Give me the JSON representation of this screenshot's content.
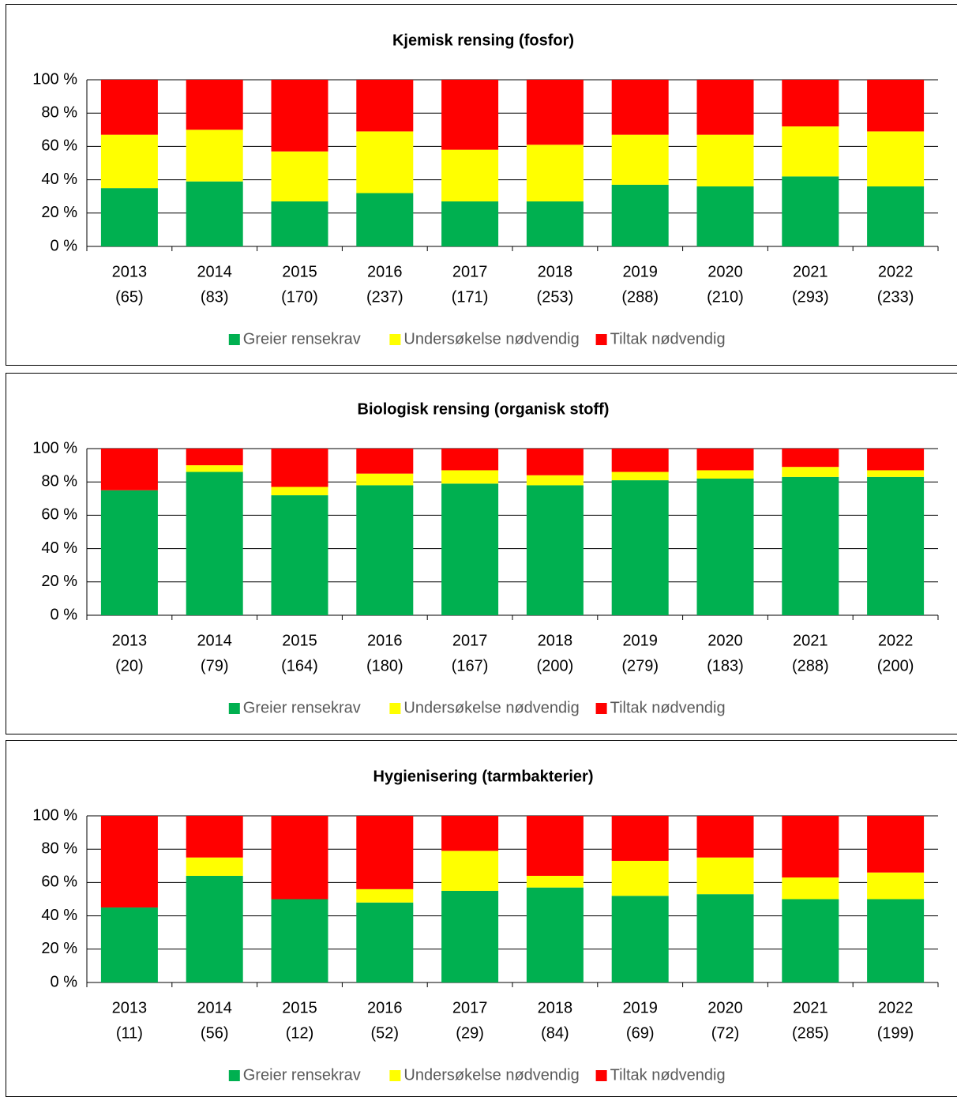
{
  "chart_data": [
    {
      "type": "bar",
      "stacked": true,
      "title": "Kjemisk rensing (fosfor)",
      "categories": [
        [
          "2013",
          "(65)"
        ],
        [
          "2014",
          "(83)"
        ],
        [
          "2015",
          "(170)"
        ],
        [
          "2016",
          "(237)"
        ],
        [
          "2017",
          "(171)"
        ],
        [
          "2018",
          "(253)"
        ],
        [
          "2019",
          "(288)"
        ],
        [
          "2020",
          "(210)"
        ],
        [
          "2021",
          "(293)"
        ],
        [
          "2022",
          "(233)"
        ]
      ],
      "series": [
        {
          "name": "Greier rensekrav",
          "color": "#00b050",
          "values": [
            35,
            39,
            27,
            32,
            27,
            27,
            37,
            36,
            42,
            36
          ]
        },
        {
          "name": "Undersøkelse nødvendig",
          "color": "#ffff00",
          "values": [
            32,
            31,
            30,
            37,
            31,
            34,
            30,
            31,
            30,
            33
          ]
        },
        {
          "name": "Tiltak nødvendig",
          "color": "#ff0000",
          "values": [
            33,
            30,
            43,
            31,
            42,
            39,
            33,
            33,
            28,
            31
          ]
        }
      ],
      "ylim": [
        0,
        100
      ],
      "yticks": [
        {
          "value": 0,
          "label": "0 %"
        },
        {
          "value": 20,
          "label": "20 %"
        },
        {
          "value": 40,
          "label": "40 %"
        },
        {
          "value": 60,
          "label": "60 %"
        },
        {
          "value": 80,
          "label": "80 %"
        },
        {
          "value": 100,
          "label": "100 %"
        }
      ],
      "grid": true,
      "legend": "bottom"
    },
    {
      "type": "bar",
      "stacked": true,
      "title": "Biologisk rensing (organisk stoff)",
      "categories": [
        [
          "2013",
          "(20)"
        ],
        [
          "2014",
          "(79)"
        ],
        [
          "2015",
          "(164)"
        ],
        [
          "2016",
          "(180)"
        ],
        [
          "2017",
          "(167)"
        ],
        [
          "2018",
          "(200)"
        ],
        [
          "2019",
          "(279)"
        ],
        [
          "2020",
          "(183)"
        ],
        [
          "2021",
          "(288)"
        ],
        [
          "2022",
          "(200)"
        ]
      ],
      "series": [
        {
          "name": "Greier rensekrav",
          "color": "#00b050",
          "values": [
            75,
            86,
            72,
            78,
            79,
            78,
            81,
            82,
            83,
            83
          ]
        },
        {
          "name": "Undersøkelse nødvendig",
          "color": "#ffff00",
          "values": [
            0,
            4,
            5,
            7,
            8,
            6,
            5,
            5,
            6,
            4
          ]
        },
        {
          "name": "Tiltak nødvendig",
          "color": "#ff0000",
          "values": [
            25,
            10,
            23,
            15,
            13,
            16,
            14,
            13,
            11,
            13
          ]
        }
      ],
      "ylim": [
        0,
        100
      ],
      "yticks": [
        {
          "value": 0,
          "label": "0 %"
        },
        {
          "value": 20,
          "label": "20 %"
        },
        {
          "value": 40,
          "label": "40 %"
        },
        {
          "value": 60,
          "label": "60 %"
        },
        {
          "value": 80,
          "label": "80 %"
        },
        {
          "value": 100,
          "label": "100 %"
        }
      ],
      "grid": true,
      "legend": "bottom"
    },
    {
      "type": "bar",
      "stacked": true,
      "title": "Hygienisering (tarmbakterier)",
      "categories": [
        [
          "2013",
          "(11)"
        ],
        [
          "2014",
          "(56)"
        ],
        [
          "2015",
          "(12)"
        ],
        [
          "2016",
          "(52)"
        ],
        [
          "2017",
          "(29)"
        ],
        [
          "2018",
          "(84)"
        ],
        [
          "2019",
          "(69)"
        ],
        [
          "2020",
          "(72)"
        ],
        [
          "2021",
          "(285)"
        ],
        [
          "2022",
          "(199)"
        ]
      ],
      "series": [
        {
          "name": "Greier rensekrav",
          "color": "#00b050",
          "values": [
            45,
            64,
            50,
            48,
            55,
            57,
            52,
            53,
            50,
            50
          ]
        },
        {
          "name": "Undersøkelse nødvendig",
          "color": "#ffff00",
          "values": [
            0,
            11,
            0,
            8,
            24,
            7,
            21,
            22,
            13,
            16
          ]
        },
        {
          "name": "Tiltak nødvendig",
          "color": "#ff0000",
          "values": [
            55,
            25,
            50,
            44,
            21,
            36,
            27,
            25,
            37,
            34
          ]
        }
      ],
      "ylim": [
        0,
        100
      ],
      "yticks": [
        {
          "value": 0,
          "label": "0 %"
        },
        {
          "value": 20,
          "label": "20 %"
        },
        {
          "value": 40,
          "label": "40 %"
        },
        {
          "value": 60,
          "label": "60 %"
        },
        {
          "value": 80,
          "label": "80 %"
        },
        {
          "value": 100,
          "label": "100 %"
        }
      ],
      "grid": true,
      "legend": "bottom"
    }
  ]
}
